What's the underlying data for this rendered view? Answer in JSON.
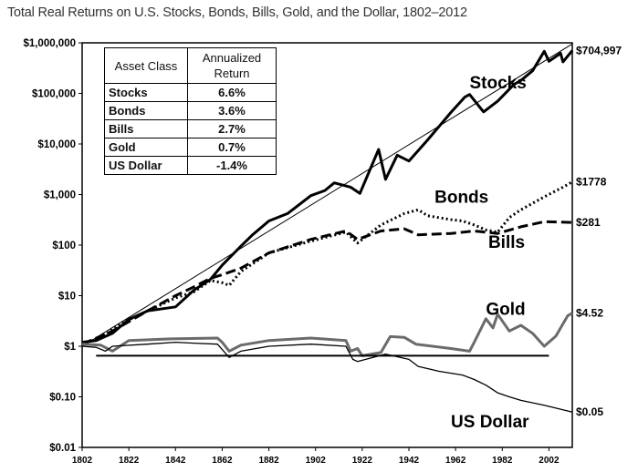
{
  "title": "Total Real Returns on U.S. Stocks, Bonds, Bills, Gold, and the Dollar, 1802–2012",
  "table": {
    "headers": [
      "Asset Class",
      "Annualized Return"
    ],
    "rows": [
      {
        "asset": "Stocks",
        "return": "6.6%"
      },
      {
        "asset": "Bonds",
        "return": "3.6%"
      },
      {
        "asset": "Bills",
        "return": "2.7%"
      },
      {
        "asset": "Gold",
        "return": "0.7%"
      },
      {
        "asset": "US Dollar",
        "return": "-1.4%"
      }
    ]
  },
  "chart_data": {
    "type": "line",
    "title": "Total Real Returns on U.S. Stocks, Bonds, Bills, Gold, and the Dollar, 1802–2012",
    "xlabel": "",
    "ylabel": "",
    "y_scale": "log",
    "xlim": [
      1802,
      2012
    ],
    "ylim": [
      0.01,
      1000000
    ],
    "x_ticks": [
      "1802",
      "1822",
      "1842",
      "1862",
      "1882",
      "1902",
      "1922",
      "1942",
      "1962",
      "1982",
      "2002"
    ],
    "y_ticks": [
      {
        "v": 1000000,
        "label": "$1,000,000"
      },
      {
        "v": 100000,
        "label": "$100,000"
      },
      {
        "v": 10000,
        "label": "$10,000"
      },
      {
        "v": 1000,
        "label": "$1,000"
      },
      {
        "v": 100,
        "label": "$100"
      },
      {
        "v": 10,
        "label": "$10"
      },
      {
        "v": 1,
        "label": "$1"
      },
      {
        "v": 0.1,
        "label": "$0.10"
      },
      {
        "v": 0.01,
        "label": "$0.01"
      }
    ],
    "grid": false,
    "series": [
      {
        "name": "Stocks",
        "end_label": "$704,997",
        "color": "#000000",
        "style": "solid",
        "width": 3,
        "points": [
          [
            1802,
            1.2
          ],
          [
            1808,
            1.3
          ],
          [
            1815,
            1.8
          ],
          [
            1822,
            3.4
          ],
          [
            1830,
            5
          ],
          [
            1842,
            6
          ],
          [
            1850,
            13
          ],
          [
            1857,
            21
          ],
          [
            1862,
            40
          ],
          [
            1870,
            95
          ],
          [
            1875,
            160
          ],
          [
            1882,
            300
          ],
          [
            1890,
            420
          ],
          [
            1900,
            950
          ],
          [
            1906,
            1200
          ],
          [
            1910,
            1700
          ],
          [
            1917,
            1400
          ],
          [
            1921,
            1050
          ],
          [
            1929,
            7800
          ],
          [
            1932,
            2000
          ],
          [
            1937,
            6000
          ],
          [
            1942,
            4600
          ],
          [
            1950,
            12000
          ],
          [
            1960,
            42000
          ],
          [
            1966,
            85000
          ],
          [
            1968,
            95000
          ],
          [
            1974,
            43000
          ],
          [
            1980,
            70000
          ],
          [
            1987,
            150000
          ],
          [
            1990,
            180000
          ],
          [
            1995,
            280000
          ],
          [
            2000,
            680000
          ],
          [
            2002,
            430000
          ],
          [
            2007,
            620000
          ],
          [
            2008,
            420000
          ],
          [
            2012,
            704997
          ]
        ]
      },
      {
        "name": "Trend",
        "color": "#000000",
        "style": "thin",
        "width": 1,
        "points": [
          [
            1802,
            1
          ],
          [
            2012,
            950000
          ]
        ]
      },
      {
        "name": "Bonds",
        "end_label": "$1778",
        "color": "#000000",
        "style": "dotted",
        "width": 3,
        "points": [
          [
            1802,
            1.1
          ],
          [
            1810,
            1.5
          ],
          [
            1820,
            3
          ],
          [
            1830,
            5
          ],
          [
            1842,
            9
          ],
          [
            1850,
            12
          ],
          [
            1857,
            20
          ],
          [
            1862,
            18
          ],
          [
            1865,
            16
          ],
          [
            1870,
            30
          ],
          [
            1882,
            70
          ],
          [
            1900,
            120
          ],
          [
            1915,
            180
          ],
          [
            1920,
            110
          ],
          [
            1930,
            250
          ],
          [
            1940,
            420
          ],
          [
            1946,
            500
          ],
          [
            1950,
            380
          ],
          [
            1960,
            320
          ],
          [
            1965,
            300
          ],
          [
            1970,
            250
          ],
          [
            1975,
            200
          ],
          [
            1980,
            180
          ],
          [
            1985,
            350
          ],
          [
            1990,
            500
          ],
          [
            2000,
            900
          ],
          [
            2008,
            1400
          ],
          [
            2012,
            1778
          ]
        ]
      },
      {
        "name": "Bills",
        "end_label": "$281",
        "color": "#000000",
        "style": "dashed",
        "width": 3,
        "points": [
          [
            1802,
            1.1
          ],
          [
            1815,
            2
          ],
          [
            1830,
            5
          ],
          [
            1842,
            10
          ],
          [
            1850,
            15
          ],
          [
            1857,
            22
          ],
          [
            1862,
            26
          ],
          [
            1870,
            35
          ],
          [
            1882,
            70
          ],
          [
            1900,
            130
          ],
          [
            1915,
            190
          ],
          [
            1920,
            130
          ],
          [
            1930,
            190
          ],
          [
            1940,
            210
          ],
          [
            1946,
            160
          ],
          [
            1960,
            170
          ],
          [
            1970,
            190
          ],
          [
            1980,
            170
          ],
          [
            1990,
            230
          ],
          [
            2000,
            290
          ],
          [
            2012,
            281
          ]
        ]
      },
      {
        "name": "Gold",
        "end_label": "$4.52",
        "color": "#6b6b6b",
        "style": "solid",
        "width": 3,
        "points": [
          [
            1802,
            1.1
          ],
          [
            1810,
            1.05
          ],
          [
            1815,
            0.8
          ],
          [
            1822,
            1.3
          ],
          [
            1840,
            1.4
          ],
          [
            1860,
            1.45
          ],
          [
            1862,
            1.2
          ],
          [
            1865,
            0.8
          ],
          [
            1870,
            1.05
          ],
          [
            1882,
            1.3
          ],
          [
            1900,
            1.45
          ],
          [
            1915,
            1.3
          ],
          [
            1917,
            0.8
          ],
          [
            1920,
            0.9
          ],
          [
            1922,
            0.65
          ],
          [
            1930,
            0.75
          ],
          [
            1934,
            1.55
          ],
          [
            1940,
            1.5
          ],
          [
            1945,
            1.1
          ],
          [
            1960,
            0.9
          ],
          [
            1968,
            0.8
          ],
          [
            1970,
            1.2
          ],
          [
            1975,
            3.5
          ],
          [
            1978,
            2.3
          ],
          [
            1980,
            4.3
          ],
          [
            1985,
            2.0
          ],
          [
            1990,
            2.6
          ],
          [
            1995,
            1.8
          ],
          [
            2000,
            1.0
          ],
          [
            2005,
            1.6
          ],
          [
            2010,
            4.0
          ],
          [
            2012,
            4.52
          ]
        ]
      },
      {
        "name": "US Dollar",
        "end_label": "$0.05",
        "color": "#000000",
        "style": "thin",
        "width": 1.3,
        "points": [
          [
            1802,
            1
          ],
          [
            1808,
            0.95
          ],
          [
            1812,
            0.8
          ],
          [
            1815,
            1.0
          ],
          [
            1830,
            1.1
          ],
          [
            1842,
            1.2
          ],
          [
            1850,
            1.15
          ],
          [
            1860,
            1.1
          ],
          [
            1865,
            0.6
          ],
          [
            1870,
            0.8
          ],
          [
            1882,
            1.0
          ],
          [
            1900,
            1.1
          ],
          [
            1915,
            1.0
          ],
          [
            1918,
            0.55
          ],
          [
            1920,
            0.5
          ],
          [
            1932,
            0.7
          ],
          [
            1942,
            0.55
          ],
          [
            1946,
            0.4
          ],
          [
            1955,
            0.32
          ],
          [
            1965,
            0.27
          ],
          [
            1970,
            0.22
          ],
          [
            1975,
            0.17
          ],
          [
            1980,
            0.12
          ],
          [
            1985,
            0.1
          ],
          [
            1990,
            0.085
          ],
          [
            2000,
            0.068
          ],
          [
            2012,
            0.05
          ]
        ]
      },
      {
        "name": "Reference",
        "color": "#000000",
        "style": "solid",
        "width": 2,
        "points": [
          [
            1808,
            0.65
          ],
          [
            2002,
            0.65
          ]
        ]
      }
    ],
    "inline_labels": [
      "Stocks",
      "Bonds",
      "Bills",
      "Gold",
      "US Dollar"
    ]
  }
}
